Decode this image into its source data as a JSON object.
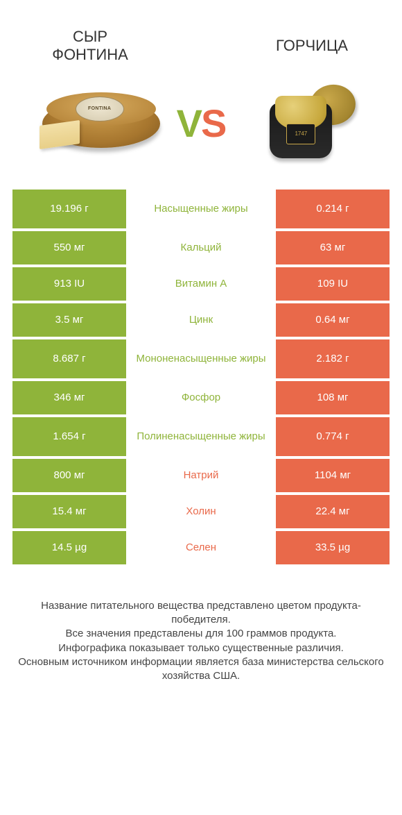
{
  "colors": {
    "green": "#8fb43a",
    "orange": "#e9694a",
    "text": "#444444"
  },
  "products": {
    "left": {
      "title_line1": "Сыр",
      "title_line2": "Фонтина",
      "illustration": "cheese-wheel",
      "label_text": "FONTINA"
    },
    "right": {
      "title_line1": "Горчица",
      "title_line2": "",
      "illustration": "mustard-jar",
      "label_text": "1747"
    }
  },
  "vs": {
    "v": "V",
    "s": "S"
  },
  "rows": [
    {
      "label": "Насыщенные жиры",
      "left": "19.196 г",
      "right": "0.214 г",
      "winner": "left",
      "tall": true
    },
    {
      "label": "Кальций",
      "left": "550 мг",
      "right": "63 мг",
      "winner": "left",
      "tall": false
    },
    {
      "label": "Витамин A",
      "left": "913 IU",
      "right": "109 IU",
      "winner": "left",
      "tall": false
    },
    {
      "label": "Цинк",
      "left": "3.5 мг",
      "right": "0.64 мг",
      "winner": "left",
      "tall": false
    },
    {
      "label": "Мононенасыщенные жиры",
      "left": "8.687 г",
      "right": "2.182 г",
      "winner": "left",
      "tall": true
    },
    {
      "label": "Фосфор",
      "left": "346 мг",
      "right": "108 мг",
      "winner": "left",
      "tall": false
    },
    {
      "label": "Полиненасыщенные жиры",
      "left": "1.654 г",
      "right": "0.774 г",
      "winner": "left",
      "tall": true
    },
    {
      "label": "Натрий",
      "left": "800 мг",
      "right": "1104 мг",
      "winner": "right",
      "tall": false
    },
    {
      "label": "Холин",
      "left": "15.4 мг",
      "right": "22.4 мг",
      "winner": "right",
      "tall": false
    },
    {
      "label": "Селен",
      "left": "14.5 µg",
      "right": "33.5 µg",
      "winner": "right",
      "tall": false
    }
  ],
  "footer": [
    "Название питательного вещества представлено цветом продукта-победителя.",
    "Все значения представлены для 100 граммов продукта.",
    "Инфографика показывает только существенные различия.",
    "Основным источником информации является база министерства сельского хозяйства США."
  ]
}
